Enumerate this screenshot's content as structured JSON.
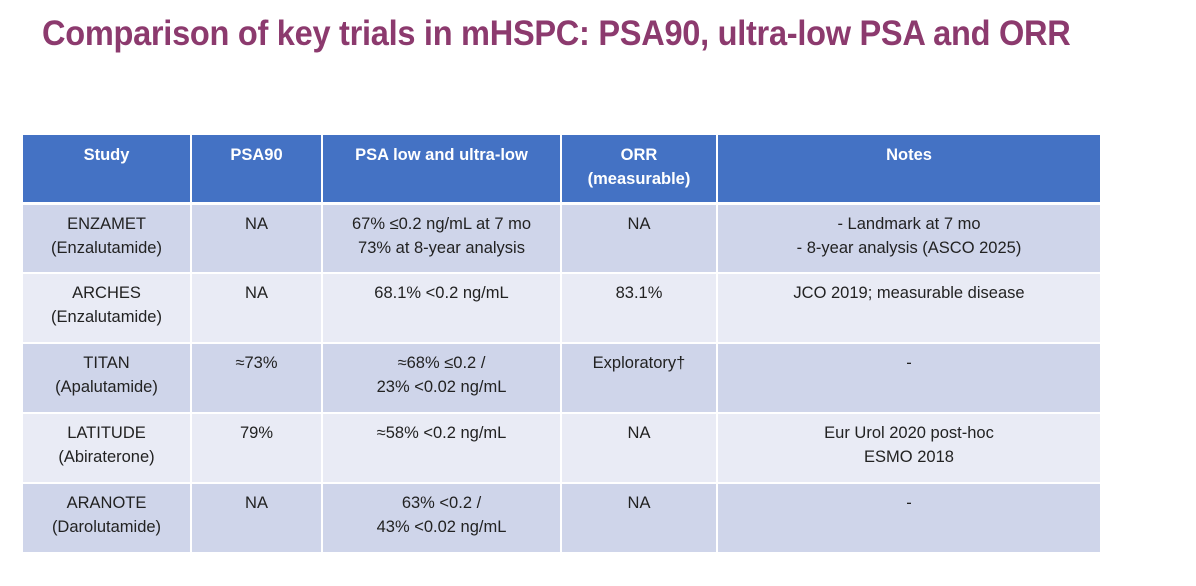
{
  "title": "Comparison of key trials in mHSPC: PSA90, ultra-low PSA and ORR",
  "table": {
    "headers": [
      [
        "Study"
      ],
      [
        "PSA90"
      ],
      [
        "PSA low and ultra-low"
      ],
      [
        "ORR",
        "(measurable)"
      ],
      [
        "Notes"
      ]
    ],
    "rows": [
      {
        "study": [
          "ENZAMET",
          "(Enzalutamide)"
        ],
        "psa90": [
          "NA"
        ],
        "psa_low": [
          "67% ≤0.2 ng/mL at 7 mo",
          "73% at 8-year analysis"
        ],
        "orr": [
          "NA"
        ],
        "notes": [
          "- Landmark at 7 mo",
          "- 8-year analysis (ASCO 2025)"
        ]
      },
      {
        "study": [
          "ARCHES",
          "(Enzalutamide)"
        ],
        "psa90": [
          "NA"
        ],
        "psa_low": [
          "68.1% <0.2 ng/mL"
        ],
        "orr": [
          "83.1%"
        ],
        "notes": [
          "JCO 2019; measurable disease"
        ]
      },
      {
        "study": [
          "TITAN",
          "(Apalutamide)"
        ],
        "psa90": [
          "≈73%"
        ],
        "psa_low": [
          "≈68% ≤0.2 /",
          "23% <0.02 ng/mL"
        ],
        "orr": [
          "Exploratory†"
        ],
        "notes": [
          "-"
        ]
      },
      {
        "study": [
          "LATITUDE",
          "(Abiraterone)"
        ],
        "psa90": [
          "79%"
        ],
        "psa_low": [
          "≈58% <0.2 ng/mL"
        ],
        "orr": [
          "NA"
        ],
        "notes": [
          "Eur Urol 2020 post-hoc",
          "ESMO 2018"
        ]
      },
      {
        "study": [
          "ARANOTE",
          "(Darolutamide)"
        ],
        "psa90": [
          "NA"
        ],
        "psa_low": [
          "63% <0.2 /",
          "43% <0.02 ng/mL"
        ],
        "orr": [
          "NA"
        ],
        "notes": [
          "-"
        ]
      }
    ]
  }
}
